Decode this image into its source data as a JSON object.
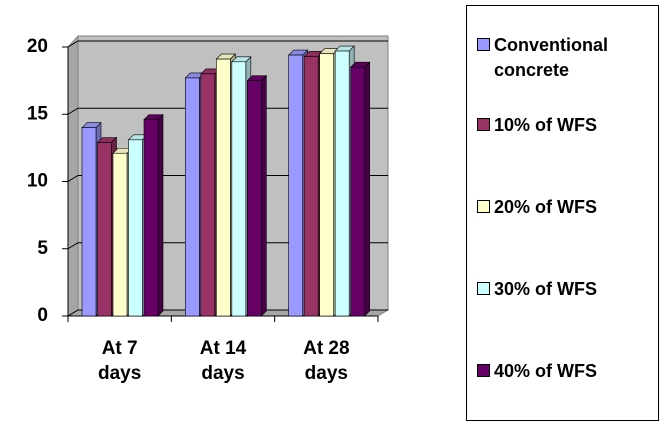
{
  "chart_data": {
    "type": "bar",
    "categories": [
      "At 7 days",
      "At 14 days",
      "At 28 days"
    ],
    "series": [
      {
        "name": "Conventional concrete",
        "color": "#9999ff",
        "values": [
          14,
          17.7,
          19.4
        ]
      },
      {
        "name": "10% of WFS",
        "color": "#993366",
        "values": [
          12.9,
          18,
          19.3
        ]
      },
      {
        "name": "20% of WFS",
        "color": "#ffffcc",
        "values": [
          12.1,
          19.1,
          19.5
        ]
      },
      {
        "name": "30% of WFS",
        "color": "#ccffff",
        "values": [
          13.1,
          18.9,
          19.7
        ]
      },
      {
        "name": "40% of WFS",
        "color": "#660066",
        "values": [
          14.6,
          17.5,
          18.5
        ]
      }
    ],
    "ylim": [
      0,
      20
    ],
    "yticks": [
      0,
      5,
      10,
      15,
      20
    ],
    "grid": true,
    "legend": "right"
  }
}
